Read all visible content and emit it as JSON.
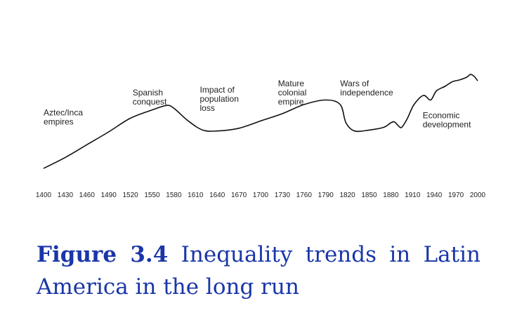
{
  "chart_data": {
    "type": "line",
    "title": "",
    "xlabel": "",
    "ylabel": "",
    "grid": false,
    "x_ticks": [
      1400,
      1430,
      1460,
      1490,
      1520,
      1550,
      1580,
      1610,
      1640,
      1670,
      1700,
      1730,
      1760,
      1790,
      1820,
      1850,
      1880,
      1910,
      1940,
      1970,
      2000
    ],
    "xlim": [
      1400,
      2000
    ],
    "ylim": [
      0,
      1
    ],
    "series": [
      {
        "x": [
          1400,
          1430,
          1460,
          1490,
          1520,
          1550,
          1570,
          1580,
          1600,
          1620,
          1640,
          1670,
          1700,
          1730,
          1760,
          1790,
          1810,
          1818,
          1830,
          1850,
          1870,
          1880,
          1885,
          1890,
          1895,
          1903,
          1912,
          1925,
          1935,
          1943,
          1955,
          1965,
          1975,
          1985,
          1990,
          1995,
          2000
        ],
        "y": [
          0.0,
          0.12,
          0.26,
          0.4,
          0.55,
          0.64,
          0.69,
          0.66,
          0.52,
          0.42,
          0.41,
          0.44,
          0.52,
          0.6,
          0.7,
          0.75,
          0.7,
          0.5,
          0.41,
          0.42,
          0.45,
          0.5,
          0.51,
          0.47,
          0.45,
          0.55,
          0.7,
          0.8,
          0.75,
          0.85,
          0.9,
          0.95,
          0.97,
          1.0,
          1.03,
          1.01,
          0.96
        ]
      }
    ],
    "annotations": [
      {
        "lines": [
          "Aztec/Inca",
          "empires"
        ],
        "x": 1400,
        "y": 0.58
      },
      {
        "lines": [
          "Spanish",
          "conquest"
        ],
        "x": 1523,
        "y": 0.8
      },
      {
        "lines": [
          "Impact of",
          "population",
          "loss"
        ],
        "x": 1616,
        "y": 0.83
      },
      {
        "lines": [
          "Mature",
          "colonial",
          "empire"
        ],
        "x": 1724,
        "y": 0.9
      },
      {
        "lines": [
          "Wars of",
          "independence"
        ],
        "x": 1810,
        "y": 0.9
      },
      {
        "lines": [
          "Economic",
          "development"
        ],
        "x": 1924,
        "y": 0.55
      }
    ]
  },
  "caption": {
    "label": "Figure 3.4",
    "text": "Inequality trends in Latin America in the long run"
  }
}
